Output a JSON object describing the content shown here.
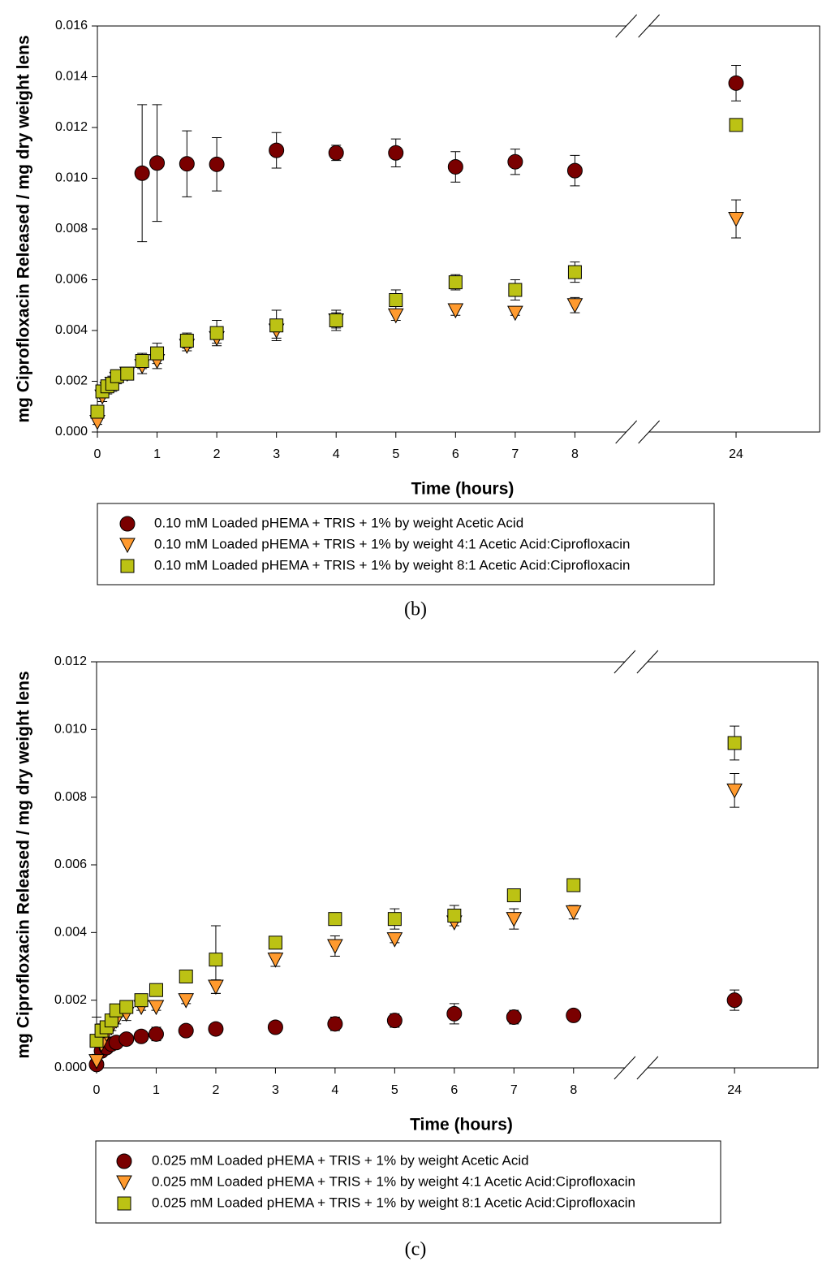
{
  "chart_data": [
    {
      "type": "scatter",
      "ylabel": "mg Ciprofloxacin Released / mg dry weight lens",
      "xlabel": "Time (hours)",
      "caption": "(b)",
      "x": [
        0,
        0.083,
        0.167,
        0.25,
        0.33,
        0.5,
        0.75,
        1,
        1.5,
        2,
        3,
        4,
        5,
        6,
        7,
        8,
        24
      ],
      "xlim": [
        0,
        25.4
      ],
      "xbreak": [
        9.05,
        22.35
      ],
      "xticks": [
        0,
        1,
        2,
        3,
        4,
        5,
        6,
        7,
        8,
        24
      ],
      "ylim": [
        0,
        0.016
      ],
      "yticks": [
        {
          "value": 0,
          "label": "0.000"
        },
        {
          "value": 0.002,
          "label": "0.002"
        },
        {
          "value": 0.004,
          "label": "0.004"
        },
        {
          "value": 0.006,
          "label": "0.006"
        },
        {
          "value": 0.008,
          "label": "0.008"
        },
        {
          "value": 0.01,
          "label": "0.010"
        },
        {
          "value": 0.012,
          "label": "0.012"
        },
        {
          "value": 0.014,
          "label": "0.014"
        },
        {
          "value": 0.016,
          "label": "0.016"
        }
      ],
      "series": [
        {
          "name": "0.10 mM Loaded pHEMA + TRIS + 1% by weight Acetic Acid",
          "color": "#7a0000",
          "marker": "circle",
          "values": [
            null,
            null,
            null,
            null,
            null,
            null,
            0.0102,
            0.0106,
            0.01057,
            0.01055,
            0.0111,
            0.011,
            0.011,
            0.01045,
            0.01065,
            0.0103,
            0.01375
          ],
          "errors": [
            null,
            null,
            null,
            null,
            null,
            null,
            0.0027,
            0.0023,
            0.0013,
            0.00105,
            0.0007,
            0.0003,
            0.00055,
            0.0006,
            0.0005,
            0.0006,
            0.0007
          ]
        },
        {
          "name": "0.10 mM Loaded pHEMA + TRIS + 1% by weight 4:1 Acetic Acid:Ciprofloxacin",
          "color": "#ff9a2e",
          "marker": "triangle",
          "values": [
            0.0004,
            0.0014,
            0.0017,
            0.0019,
            0.0021,
            0.0023,
            0.0026,
            0.0028,
            0.0034,
            0.0037,
            0.004,
            0.0044,
            0.0046,
            0.0048,
            0.0047,
            0.005,
            0.0084
          ],
          "errors": [
            0.0001,
            0.0002,
            0.0002,
            0.0002,
            0.0002,
            0.0001,
            0.0003,
            0.0003,
            0.0002,
            0.0002,
            0.0003,
            0.0003,
            0.0002,
            0.0002,
            0.0001,
            0.0003,
            0.00075
          ]
        },
        {
          "name": "0.10 mM Loaded pHEMA + TRIS + 1% by weight 8:1 Acetic Acid:Ciprofloxacin",
          "color": "#bcc214",
          "marker": "square",
          "values": [
            0.0008,
            0.0016,
            0.0018,
            0.0019,
            0.0022,
            0.0023,
            0.0028,
            0.0031,
            0.0036,
            0.0039,
            0.0042,
            0.0044,
            0.0052,
            0.0059,
            0.0056,
            0.0063,
            0.0121
          ],
          "errors": [
            0.0001,
            0.0002,
            0.0002,
            0.0003,
            0.0002,
            0.0001,
            0.0003,
            0.0004,
            0.0003,
            0.0005,
            0.0006,
            0.0004,
            0.0004,
            0.0003,
            0.0004,
            0.0004,
            0
          ]
        }
      ]
    },
    {
      "type": "scatter",
      "ylabel": "mg Ciprofloxacin Released / mg dry weight lens",
      "xlabel": "Time (hours)",
      "caption": "(c)",
      "x": [
        0,
        0.083,
        0.167,
        0.25,
        0.33,
        0.5,
        0.75,
        1,
        1.5,
        2,
        3,
        4,
        5,
        6,
        7,
        8,
        24
      ],
      "xlim": [
        0,
        25.4
      ],
      "xbreak": [
        9.05,
        22.35
      ],
      "xticks": [
        0,
        1,
        2,
        3,
        4,
        5,
        6,
        7,
        8,
        24
      ],
      "ylim": [
        0,
        0.012
      ],
      "yticks": [
        {
          "value": 0,
          "label": "0.000"
        },
        {
          "value": 0.002,
          "label": "0.002"
        },
        {
          "value": 0.004,
          "label": "0.004"
        },
        {
          "value": 0.006,
          "label": "0.006"
        },
        {
          "value": 0.008,
          "label": "0.008"
        },
        {
          "value": 0.01,
          "label": "0.010"
        },
        {
          "value": 0.012,
          "label": "0.012"
        }
      ],
      "series": [
        {
          "name": "0.025 mM Loaded pHEMA + TRIS + 1% by weight Acetic Acid",
          "color": "#7a0000",
          "marker": "circle",
          "values": [
            0.0001,
            0.0005,
            0.0006,
            0.0007,
            0.00075,
            0.00085,
            0.00093,
            0.001,
            0.0011,
            0.00115,
            0.0012,
            0.0013,
            0.0014,
            0.0016,
            0.0015,
            0.00155,
            0.002
          ],
          "errors": [
            0.0001,
            0.0001,
            0.0001,
            0.0001,
            0.0001,
            0.0001,
            0.0001,
            0.0002,
            0.0001,
            0.0001,
            0.0001,
            0.0002,
            0.0002,
            0.0003,
            0.0002,
            0.0001,
            0.0003
          ]
        },
        {
          "name": "0.025 mM Loaded pHEMA + TRIS + 1% by weight 4:1 Acetic Acid:Ciprofloxacin",
          "color": "#ff9a2e",
          "marker": "triangle",
          "values": [
            0.0002,
            0.0007,
            0.001,
            0.0012,
            0.0014,
            0.0016,
            0.0018,
            0.0018,
            0.002,
            0.0024,
            0.0032,
            0.0036,
            0.0038,
            0.0043,
            0.0044,
            0.0046,
            0.0082
          ],
          "errors": [
            0.0002,
            0.0002,
            0.0001,
            0.0001,
            0.0001,
            0.0002,
            0.0001,
            0.0001,
            0.0001,
            0.0002,
            0.0002,
            0.0003,
            0.0001,
            0.0001,
            0.0003,
            0.0002,
            0.0005
          ]
        },
        {
          "name": "0.025 mM Loaded pHEMA + TRIS + 1% by weight 8:1 Acetic Acid:Ciprofloxacin",
          "color": "#bcc214",
          "marker": "square",
          "values": [
            0.0008,
            0.0011,
            0.0012,
            0.0014,
            0.0017,
            0.0018,
            0.002,
            0.0023,
            0.0027,
            0.0032,
            0.0037,
            0.0044,
            0.0044,
            0.0045,
            0.0051,
            0.0054,
            0.0096
          ],
          "errors": [
            0.0007,
            0.0002,
            0.0001,
            0.0001,
            0.0001,
            0.0001,
            0.0001,
            0.0001,
            0.0001,
            0.001,
            0.0001,
            0.0001,
            0.0003,
            0.0003,
            0.0001,
            0.0001,
            0.0005
          ]
        }
      ]
    }
  ]
}
